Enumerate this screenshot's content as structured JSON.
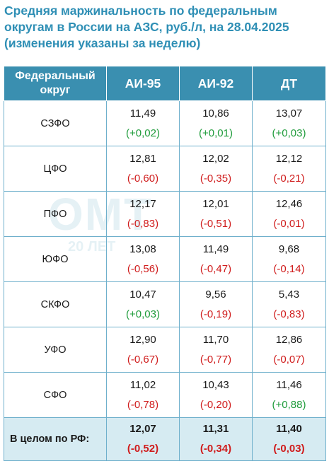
{
  "title": "Средняя маржинальность по федеральным округам в России на АЗС, руб./л, на 28.04.2025 (изменения указаны за неделю)",
  "watermark": {
    "letters": "ОМТ",
    "years": "20 ЛЕТ"
  },
  "colors": {
    "header_bg": "#3a8fb0",
    "title": "#2f8fb5",
    "negative": "#d01c1c",
    "positive": "#1f9c3b",
    "total_bg": "#d6ebf2"
  },
  "chart_data": {
    "type": "table",
    "columns": [
      "Федеральный округ",
      "АИ-95",
      "АИ-92",
      "ДТ"
    ],
    "rows": [
      {
        "region": "СЗФО",
        "values": [
          "11,49",
          "10,86",
          "13,07"
        ],
        "changes": [
          "(+0,02)",
          "(+0,01)",
          "(+0,03)"
        ]
      },
      {
        "region": "ЦФО",
        "values": [
          "12,81",
          "12,02",
          "12,12"
        ],
        "changes": [
          "(-0,60)",
          "(-0,35)",
          "(-0,21)"
        ]
      },
      {
        "region": "ПФО",
        "values": [
          "12,17",
          "12,01",
          "12,46"
        ],
        "changes": [
          "(-0,83)",
          "(-0,51)",
          "(-0,01)"
        ]
      },
      {
        "region": "ЮФО",
        "values": [
          "13,08",
          "11,49",
          "9,68"
        ],
        "changes": [
          "(-0,56)",
          "(-0,47)",
          "(-0,14)"
        ]
      },
      {
        "region": "СКФО",
        "values": [
          "10,47",
          "9,56",
          "5,43"
        ],
        "changes": [
          "(+0,03)",
          "(-0,19)",
          "(-0,83)"
        ]
      },
      {
        "region": "УФО",
        "values": [
          "12,90",
          "11,70",
          "12,86"
        ],
        "changes": [
          "(-0,67)",
          "(-0,77)",
          "(-0,07)"
        ]
      },
      {
        "region": "СФО",
        "values": [
          "11,02",
          "10,43",
          "11,46"
        ],
        "changes": [
          "(-0,78)",
          "(-0,20)",
          "(+0,88)"
        ]
      }
    ],
    "total": {
      "region": "В целом по РФ:",
      "values": [
        "12,07",
        "11,31",
        "11,40"
      ],
      "changes": [
        "(-0,52)",
        "(-0,34)",
        "(-0,03)"
      ]
    }
  }
}
